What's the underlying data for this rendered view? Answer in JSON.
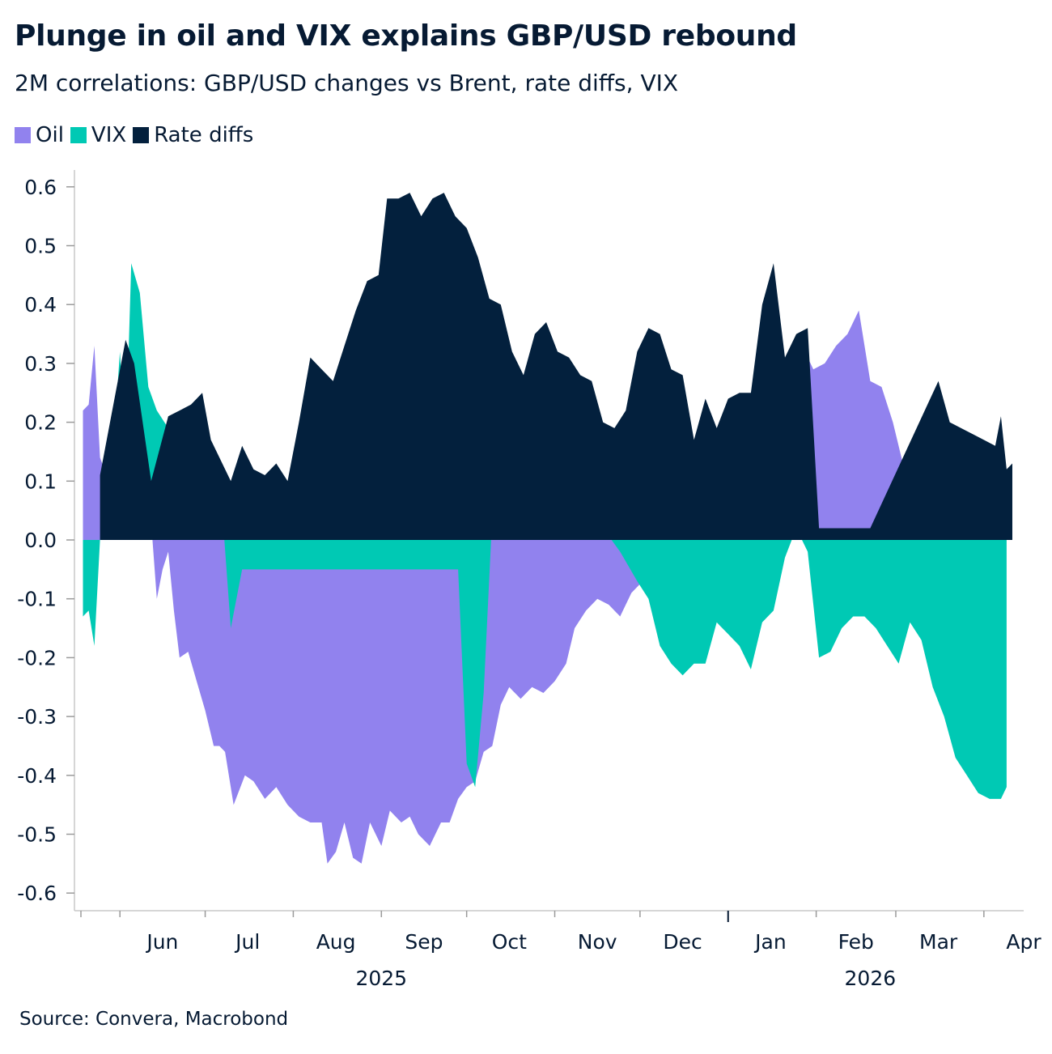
{
  "title": "Plunge in oil and VIX explains GBP/USD rebound",
  "subtitle": "2M correlations: GBP/USD changes vs Brent, rate diffs, VIX",
  "source": "Source: Convera, Macrobond",
  "colors": {
    "Oil": "#9182ee",
    "VIX": "#00c9b4",
    "Rate diffs": "#03203d",
    "axis": "#c8c8c8"
  },
  "chart_data": {
    "type": "area",
    "title": "Plunge in oil and VIX explains GBP/USD rebound",
    "ylim": [
      -0.65,
      0.63
    ],
    "yticks": [
      "0.6",
      "0.5",
      "0.4",
      "0.3",
      "0.2",
      "0.1",
      "0.0",
      "-0.1",
      "-0.2",
      "-0.3",
      "-0.4",
      "-0.5",
      "-0.6"
    ],
    "ytick_values": [
      0.6,
      0.5,
      0.4,
      0.3,
      0.2,
      0.1,
      0.0,
      -0.1,
      -0.2,
      -0.3,
      -0.4,
      -0.5,
      -0.6
    ],
    "xlim": [
      "2025-05-16",
      "2026-04-15"
    ],
    "month_labels": [
      {
        "label": "Jun",
        "date": "2025-06-16"
      },
      {
        "label": "Jul",
        "date": "2025-07-16"
      },
      {
        "label": "Aug",
        "date": "2025-08-16"
      },
      {
        "label": "Sep",
        "date": "2025-09-16"
      },
      {
        "label": "Oct",
        "date": "2025-10-16"
      },
      {
        "label": "Nov",
        "date": "2025-11-16"
      },
      {
        "label": "Dec",
        "date": "2025-12-16"
      },
      {
        "label": "Jan",
        "date": "2026-01-16"
      },
      {
        "label": "Feb",
        "date": "2026-02-15"
      },
      {
        "label": "Mar",
        "date": "2026-03-16"
      },
      {
        "label": "Apr",
        "date": "2026-04-15"
      }
    ],
    "month_ticks": [
      "2025-06-01",
      "2025-07-01",
      "2025-08-01",
      "2025-09-01",
      "2025-10-01",
      "2025-11-01",
      "2025-12-01",
      "2026-01-01",
      "2026-02-01",
      "2026-03-01",
      "2026-04-01"
    ],
    "year_labels": [
      {
        "label": "2025",
        "date": "2025-09-01"
      },
      {
        "label": "2026",
        "date": "2026-02-20"
      }
    ],
    "year_tick": "2026-01-01",
    "legend": [
      "Oil",
      "VIX",
      "Rate diffs"
    ],
    "grid": false,
    "legend_position": "top-left",
    "series": [
      {
        "name": "Oil",
        "points": [
          [
            "2025-05-19",
            0.22
          ],
          [
            "2025-05-21",
            0.23
          ],
          [
            "2025-05-23",
            0.33
          ],
          [
            "2025-05-25",
            0.14
          ],
          [
            "2025-05-28",
            0.1
          ],
          [
            "2025-05-30",
            0.07
          ],
          [
            "2025-06-02",
            0.04
          ],
          [
            "2025-06-06",
            0.06
          ],
          [
            "2025-06-10",
            0.05
          ],
          [
            "2025-06-12",
            0.03
          ],
          [
            "2025-06-14",
            -0.1
          ],
          [
            "2025-06-16",
            -0.05
          ],
          [
            "2025-06-18",
            -0.02
          ],
          [
            "2025-06-20",
            -0.12
          ],
          [
            "2025-06-22",
            -0.2
          ],
          [
            "2025-06-25",
            -0.19
          ],
          [
            "2025-06-28",
            -0.24
          ],
          [
            "2025-07-01",
            -0.29
          ],
          [
            "2025-07-04",
            -0.35
          ],
          [
            "2025-07-06",
            -0.35
          ],
          [
            "2025-07-08",
            -0.36
          ],
          [
            "2025-07-11",
            -0.45
          ],
          [
            "2025-07-15",
            -0.4
          ],
          [
            "2025-07-18",
            -0.41
          ],
          [
            "2025-07-22",
            -0.44
          ],
          [
            "2025-07-26",
            -0.42
          ],
          [
            "2025-07-30",
            -0.45
          ],
          [
            "2025-08-03",
            -0.47
          ],
          [
            "2025-08-07",
            -0.48
          ],
          [
            "2025-08-11",
            -0.48
          ],
          [
            "2025-08-13",
            -0.55
          ],
          [
            "2025-08-16",
            -0.53
          ],
          [
            "2025-08-19",
            -0.48
          ],
          [
            "2025-08-22",
            -0.54
          ],
          [
            "2025-08-25",
            -0.55
          ],
          [
            "2025-08-28",
            -0.48
          ],
          [
            "2025-09-01",
            -0.52
          ],
          [
            "2025-09-04",
            -0.46
          ],
          [
            "2025-09-08",
            -0.48
          ],
          [
            "2025-09-11",
            -0.47
          ],
          [
            "2025-09-14",
            -0.5
          ],
          [
            "2025-09-18",
            -0.52
          ],
          [
            "2025-09-22",
            -0.48
          ],
          [
            "2025-09-25",
            -0.48
          ],
          [
            "2025-09-28",
            -0.44
          ],
          [
            "2025-10-01",
            -0.42
          ],
          [
            "2025-10-04",
            -0.41
          ],
          [
            "2025-10-07",
            -0.36
          ],
          [
            "2025-10-10",
            -0.35
          ],
          [
            "2025-10-13",
            -0.28
          ],
          [
            "2025-10-16",
            -0.25
          ],
          [
            "2025-10-20",
            -0.27
          ],
          [
            "2025-10-24",
            -0.25
          ],
          [
            "2025-10-28",
            -0.26
          ],
          [
            "2025-11-01",
            -0.24
          ],
          [
            "2025-11-05",
            -0.21
          ],
          [
            "2025-11-08",
            -0.15
          ],
          [
            "2025-11-12",
            -0.12
          ],
          [
            "2025-11-16",
            -0.1
          ],
          [
            "2025-11-20",
            -0.11
          ],
          [
            "2025-11-24",
            -0.13
          ],
          [
            "2025-11-28",
            -0.09
          ],
          [
            "2025-12-02",
            -0.07
          ],
          [
            "2025-12-06",
            -0.05
          ],
          [
            "2025-12-10",
            -0.06
          ],
          [
            "2025-12-14",
            -0.03
          ],
          [
            "2025-12-18",
            -0.02
          ],
          [
            "2025-12-22",
            0.01
          ],
          [
            "2025-12-26",
            0.03
          ],
          [
            "2025-12-28",
            0.15
          ],
          [
            "2026-01-01",
            0.17
          ],
          [
            "2026-01-05",
            0.2
          ],
          [
            "2026-01-09",
            0.24
          ],
          [
            "2026-01-13",
            0.17
          ],
          [
            "2026-01-17",
            0.19
          ],
          [
            "2026-01-20",
            0.14
          ],
          [
            "2026-01-24",
            0.2
          ],
          [
            "2026-01-27",
            0.33
          ],
          [
            "2026-01-31",
            0.29
          ],
          [
            "2026-02-04",
            0.3
          ],
          [
            "2026-02-08",
            0.33
          ],
          [
            "2026-02-12",
            0.35
          ],
          [
            "2026-02-16",
            0.39
          ],
          [
            "2026-02-20",
            0.27
          ],
          [
            "2026-02-24",
            0.26
          ],
          [
            "2026-02-28",
            0.2
          ],
          [
            "2026-03-04",
            0.12
          ],
          [
            "2026-03-08",
            0.12
          ],
          [
            "2026-03-12",
            0.03
          ],
          [
            "2026-03-16",
            0.0
          ],
          [
            "2026-03-18",
            -0.03
          ],
          [
            "2026-03-20",
            -0.03
          ]
        ]
      },
      {
        "name": "VIX",
        "points": [
          [
            "2025-05-19",
            -0.13
          ],
          [
            "2025-05-21",
            -0.12
          ],
          [
            "2025-05-23",
            -0.18
          ],
          [
            "2025-05-26",
            0.09
          ],
          [
            "2025-05-29",
            0.11
          ],
          [
            "2025-06-01",
            0.32
          ],
          [
            "2025-06-03",
            0.15
          ],
          [
            "2025-06-05",
            0.47
          ],
          [
            "2025-06-08",
            0.42
          ],
          [
            "2025-06-11",
            0.26
          ],
          [
            "2025-06-14",
            0.22
          ],
          [
            "2025-06-18",
            0.19
          ],
          [
            "2025-06-22",
            0.15
          ],
          [
            "2025-06-26",
            0.18
          ],
          [
            "2025-06-30",
            0.14
          ],
          [
            "2025-07-04",
            0.09
          ],
          [
            "2025-07-07",
            0.05
          ],
          [
            "2025-07-10",
            -0.15
          ],
          [
            "2025-07-14",
            -0.05
          ],
          [
            "2025-09-28",
            -0.05
          ],
          [
            "2025-10-01",
            -0.38
          ],
          [
            "2025-10-04",
            -0.42
          ],
          [
            "2025-10-07",
            -0.26
          ],
          [
            "2025-10-10",
            0.04
          ],
          [
            "2025-10-14",
            0.09
          ],
          [
            "2025-10-18",
            0.1
          ],
          [
            "2025-10-22",
            0.16
          ],
          [
            "2025-10-26",
            0.09
          ],
          [
            "2025-10-30",
            0.07
          ],
          [
            "2025-11-03",
            0.15
          ],
          [
            "2025-11-07",
            0.07
          ],
          [
            "2025-11-12",
            0.05
          ],
          [
            "2025-11-18",
            0.02
          ],
          [
            "2025-11-24",
            -0.02
          ],
          [
            "2025-11-30",
            -0.07
          ],
          [
            "2025-12-04",
            -0.1
          ],
          [
            "2025-12-08",
            -0.18
          ],
          [
            "2025-12-12",
            -0.21
          ],
          [
            "2025-12-16",
            -0.23
          ],
          [
            "2025-12-20",
            -0.21
          ],
          [
            "2025-12-24",
            -0.21
          ],
          [
            "2025-12-28",
            -0.14
          ],
          [
            "2026-01-01",
            -0.16
          ],
          [
            "2026-01-05",
            -0.18
          ],
          [
            "2026-01-09",
            -0.22
          ],
          [
            "2026-01-13",
            -0.14
          ],
          [
            "2026-01-17",
            -0.12
          ],
          [
            "2026-01-21",
            -0.03
          ],
          [
            "2026-01-25",
            0.02
          ],
          [
            "2026-01-29",
            -0.02
          ],
          [
            "2026-02-02",
            -0.2
          ],
          [
            "2026-02-06",
            -0.19
          ],
          [
            "2026-02-10",
            -0.15
          ],
          [
            "2026-02-14",
            -0.13
          ],
          [
            "2026-02-18",
            -0.13
          ],
          [
            "2026-02-22",
            -0.15
          ],
          [
            "2026-02-26",
            -0.18
          ],
          [
            "2026-03-02",
            -0.21
          ],
          [
            "2026-03-06",
            -0.14
          ],
          [
            "2026-03-10",
            -0.17
          ],
          [
            "2026-03-14",
            -0.25
          ],
          [
            "2026-03-18",
            -0.3
          ],
          [
            "2026-03-22",
            -0.37
          ],
          [
            "2026-03-26",
            -0.4
          ],
          [
            "2026-03-30",
            -0.43
          ],
          [
            "2026-04-03",
            -0.44
          ],
          [
            "2026-04-07",
            -0.44
          ],
          [
            "2026-04-09",
            -0.42
          ]
        ]
      },
      {
        "name": "Rate diffs",
        "points": [
          [
            "2025-05-25",
            0.11
          ],
          [
            "2025-06-03",
            0.34
          ],
          [
            "2025-06-06",
            0.3
          ],
          [
            "2025-06-12",
            0.1
          ],
          [
            "2025-06-18",
            0.21
          ],
          [
            "2025-06-22",
            0.22
          ],
          [
            "2025-06-26",
            0.23
          ],
          [
            "2025-06-30",
            0.25
          ],
          [
            "2025-07-03",
            0.17
          ],
          [
            "2025-07-10",
            0.1
          ],
          [
            "2025-07-14",
            0.16
          ],
          [
            "2025-07-18",
            0.12
          ],
          [
            "2025-07-22",
            0.11
          ],
          [
            "2025-07-26",
            0.13
          ],
          [
            "2025-07-30",
            0.1
          ],
          [
            "2025-08-03",
            0.2
          ],
          [
            "2025-08-07",
            0.31
          ],
          [
            "2025-08-11",
            0.29
          ],
          [
            "2025-08-15",
            0.27
          ],
          [
            "2025-08-19",
            0.33
          ],
          [
            "2025-08-23",
            0.39
          ],
          [
            "2025-08-27",
            0.44
          ],
          [
            "2025-08-31",
            0.45
          ],
          [
            "2025-09-03",
            0.58
          ],
          [
            "2025-09-07",
            0.58
          ],
          [
            "2025-09-11",
            0.59
          ],
          [
            "2025-09-15",
            0.55
          ],
          [
            "2025-09-19",
            0.58
          ],
          [
            "2025-09-23",
            0.59
          ],
          [
            "2025-09-27",
            0.55
          ],
          [
            "2025-10-01",
            0.53
          ],
          [
            "2025-10-05",
            0.48
          ],
          [
            "2025-10-09",
            0.41
          ],
          [
            "2025-10-13",
            0.4
          ],
          [
            "2025-10-17",
            0.32
          ],
          [
            "2025-10-21",
            0.28
          ],
          [
            "2025-10-25",
            0.35
          ],
          [
            "2025-10-29",
            0.37
          ],
          [
            "2025-11-02",
            0.32
          ],
          [
            "2025-11-06",
            0.31
          ],
          [
            "2025-11-10",
            0.28
          ],
          [
            "2025-11-14",
            0.27
          ],
          [
            "2025-11-18",
            0.2
          ],
          [
            "2025-11-22",
            0.19
          ],
          [
            "2025-11-26",
            0.22
          ],
          [
            "2025-11-30",
            0.32
          ],
          [
            "2025-12-04",
            0.36
          ],
          [
            "2025-12-08",
            0.35
          ],
          [
            "2025-12-12",
            0.29
          ],
          [
            "2025-12-16",
            0.28
          ],
          [
            "2025-12-20",
            0.17
          ],
          [
            "2025-12-24",
            0.24
          ],
          [
            "2025-12-28",
            0.19
          ],
          [
            "2026-01-01",
            0.24
          ],
          [
            "2026-01-05",
            0.25
          ],
          [
            "2026-01-09",
            0.25
          ],
          [
            "2026-01-13",
            0.4
          ],
          [
            "2026-01-17",
            0.47
          ],
          [
            "2026-01-21",
            0.31
          ],
          [
            "2026-01-25",
            0.35
          ],
          [
            "2026-01-29",
            0.36
          ],
          [
            "2026-02-02",
            0.02
          ],
          [
            "2026-02-20",
            0.02
          ],
          [
            "2026-03-16",
            0.27
          ],
          [
            "2026-03-20",
            0.2
          ],
          [
            "2026-03-24",
            0.19
          ],
          [
            "2026-03-28",
            0.18
          ],
          [
            "2026-04-01",
            0.17
          ],
          [
            "2026-04-05",
            0.16
          ],
          [
            "2026-04-07",
            0.21
          ],
          [
            "2026-04-09",
            0.12
          ],
          [
            "2026-04-11",
            0.13
          ]
        ]
      }
    ]
  }
}
